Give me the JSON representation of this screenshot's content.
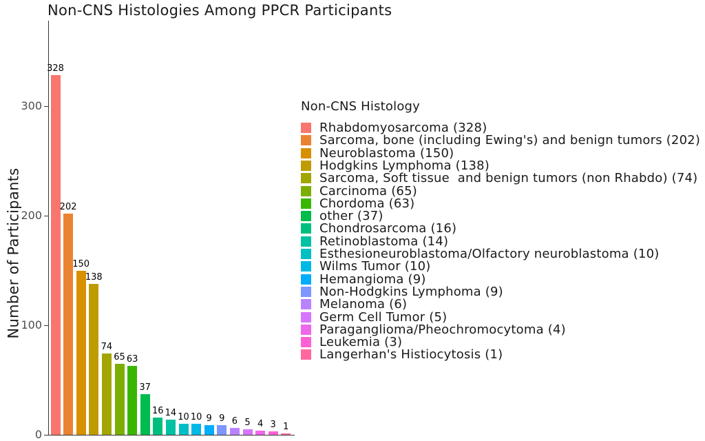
{
  "page": {
    "background": "#FFFFFF"
  },
  "chart_data": {
    "type": "bar",
    "title": "Non-CNS Histologies Among PPCR Participants",
    "xlabel": "",
    "ylabel": "Number of Participants",
    "ylim": [
      0,
      378
    ],
    "yticks": [
      0,
      100,
      200,
      300
    ],
    "grid": false,
    "legend_position": "right",
    "legend_title": "Non-CNS Histology",
    "categories": [
      "Rhabdomyosarcoma",
      "Sarcoma, bone (including Ewing's) and benign tumors",
      "Neuroblastoma",
      "Hodgkins Lymphoma",
      "Sarcoma, Soft tissue  and benign tumors (non Rhabdo)",
      "Carcinoma",
      "Chordoma",
      "other",
      "Chondrosarcoma",
      "Retinoblastoma",
      "Esthesioneuroblastoma/Olfactory neuroblastoma",
      "Wilms Tumor",
      "Hemangioma",
      "Non-Hodgkins Lymphoma",
      "Melanoma",
      "Germ Cell Tumor",
      "Paraganglioma/Pheochromocytoma",
      "Leukemia",
      "Langerhan's Histiocytosis"
    ],
    "values": [
      328,
      202,
      150,
      138,
      74,
      65,
      63,
      37,
      16,
      14,
      10,
      10,
      9,
      9,
      6,
      5,
      4,
      3,
      1
    ],
    "colors": [
      "#F8766D",
      "#EA8331",
      "#D89000",
      "#C09B00",
      "#A3A500",
      "#7CAE00",
      "#39B600",
      "#00BB4E",
      "#00BF7D",
      "#00C1A2",
      "#00BFC4",
      "#00B8E5",
      "#00ACFC",
      "#7F96FF",
      "#B983FF",
      "#D575FE",
      "#EF67EB",
      "#FD61D3",
      "#FF689E"
    ],
    "bar_labels": [
      "328",
      "202",
      "150",
      "138",
      "74",
      "65",
      "63",
      "37",
      "16",
      "14",
      "10",
      "10",
      "9",
      "9",
      "6",
      "5",
      "4",
      "3",
      "1"
    ],
    "legend_labels": [
      "Rhabdomyosarcoma (328)",
      "Sarcoma, bone (including Ewing's) and benign tumors (202)",
      "Neuroblastoma (150)",
      "Hodgkins Lymphoma (138)",
      "Sarcoma, Soft tissue  and benign tumors (non Rhabdo) (74)",
      "Carcinoma (65)",
      "Chordoma (63)",
      "other (37)",
      "Chondrosarcoma (16)",
      "Retinoblastoma (14)",
      "Esthesioneuroblastoma/Olfactory neuroblastoma (10)",
      "Wilms Tumor (10)",
      "Hemangioma (9)",
      "Non-Hodgkins Lymphoma (9)",
      "Melanoma (6)",
      "Germ Cell Tumor (5)",
      "Paraganglioma/Pheochromocytoma (4)",
      "Leukemia (3)",
      "Langerhan's Histiocytosis (1)"
    ]
  },
  "axis_style": {
    "line_color": "#333333",
    "tick_label_color": "#4D4D4D",
    "text_color": "#000000"
  }
}
